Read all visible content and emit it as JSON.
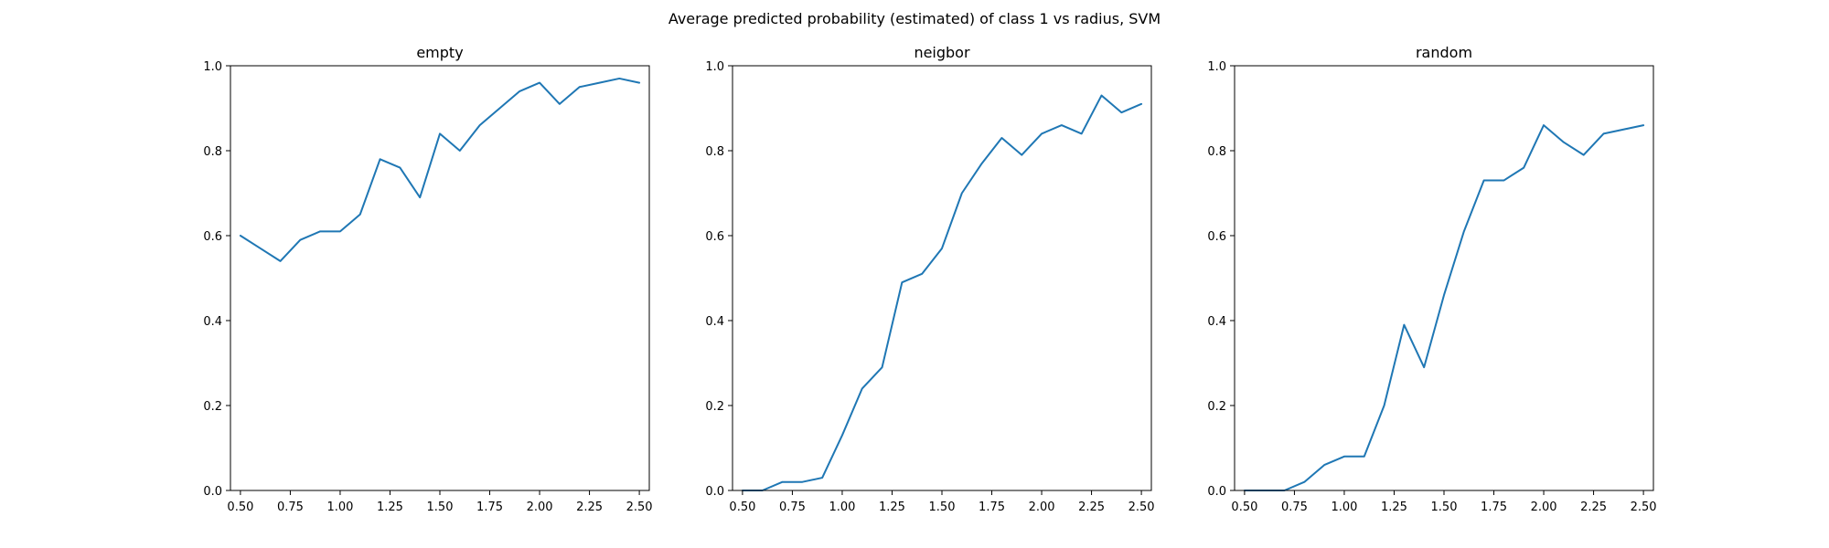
{
  "figure": {
    "title": "Average predicted probability (estimated) of class 1 vs radius, SVM"
  },
  "chart_data": [
    {
      "type": "line",
      "title": "empty",
      "xlabel": "",
      "ylabel": "",
      "xlim": [
        0.45,
        2.55
      ],
      "ylim": [
        0.0,
        1.0
      ],
      "xticks": [
        "0.50",
        "0.75",
        "1.00",
        "1.25",
        "1.50",
        "1.75",
        "2.00",
        "2.25",
        "2.50"
      ],
      "yticks": [
        "0.0",
        "0.2",
        "0.4",
        "0.6",
        "0.8",
        "1.0"
      ],
      "grid": false,
      "color": "#1f77b4",
      "x": [
        0.5,
        0.6,
        0.7,
        0.8,
        0.9,
        1.0,
        1.1,
        1.2,
        1.3,
        1.4,
        1.5,
        1.6,
        1.7,
        1.8,
        1.9,
        2.0,
        2.1,
        2.2,
        2.3,
        2.4,
        2.5
      ],
      "y": [
        0.6,
        0.57,
        0.54,
        0.59,
        0.61,
        0.61,
        0.65,
        0.78,
        0.76,
        0.69,
        0.84,
        0.8,
        0.86,
        0.9,
        0.94,
        0.96,
        0.91,
        0.95,
        0.96,
        0.97,
        0.96
      ]
    },
    {
      "type": "line",
      "title": "neigbor",
      "xlabel": "",
      "ylabel": "",
      "xlim": [
        0.45,
        2.55
      ],
      "ylim": [
        0.0,
        1.0
      ],
      "xticks": [
        "0.50",
        "0.75",
        "1.00",
        "1.25",
        "1.50",
        "1.75",
        "2.00",
        "2.25",
        "2.50"
      ],
      "yticks": [
        "0.0",
        "0.2",
        "0.4",
        "0.6",
        "0.8",
        "1.0"
      ],
      "grid": false,
      "color": "#1f77b4",
      "x": [
        0.5,
        0.6,
        0.7,
        0.8,
        0.9,
        1.0,
        1.1,
        1.2,
        1.3,
        1.4,
        1.5,
        1.6,
        1.7,
        1.8,
        1.9,
        2.0,
        2.1,
        2.2,
        2.3,
        2.4,
        2.5
      ],
      "y": [
        0.0,
        0.0,
        0.02,
        0.02,
        0.03,
        0.13,
        0.24,
        0.29,
        0.49,
        0.51,
        0.57,
        0.7,
        0.77,
        0.83,
        0.79,
        0.84,
        0.86,
        0.84,
        0.93,
        0.89,
        0.91
      ]
    },
    {
      "type": "line",
      "title": "random",
      "xlabel": "",
      "ylabel": "",
      "xlim": [
        0.45,
        2.55
      ],
      "ylim": [
        0.0,
        1.0
      ],
      "xticks": [
        "0.50",
        "0.75",
        "1.00",
        "1.25",
        "1.50",
        "1.75",
        "2.00",
        "2.25",
        "2.50"
      ],
      "yticks": [
        "0.0",
        "0.2",
        "0.4",
        "0.6",
        "0.8",
        "1.0"
      ],
      "grid": false,
      "color": "#1f77b4",
      "x": [
        0.5,
        0.6,
        0.7,
        0.8,
        0.9,
        1.0,
        1.1,
        1.2,
        1.3,
        1.4,
        1.5,
        1.6,
        1.7,
        1.8,
        1.9,
        2.0,
        2.1,
        2.2,
        2.3,
        2.4,
        2.5
      ],
      "y": [
        0.0,
        0.0,
        0.0,
        0.02,
        0.06,
        0.08,
        0.08,
        0.2,
        0.39,
        0.29,
        0.46,
        0.61,
        0.73,
        0.73,
        0.76,
        0.86,
        0.82,
        0.79,
        0.84,
        0.85,
        0.86
      ]
    }
  ]
}
